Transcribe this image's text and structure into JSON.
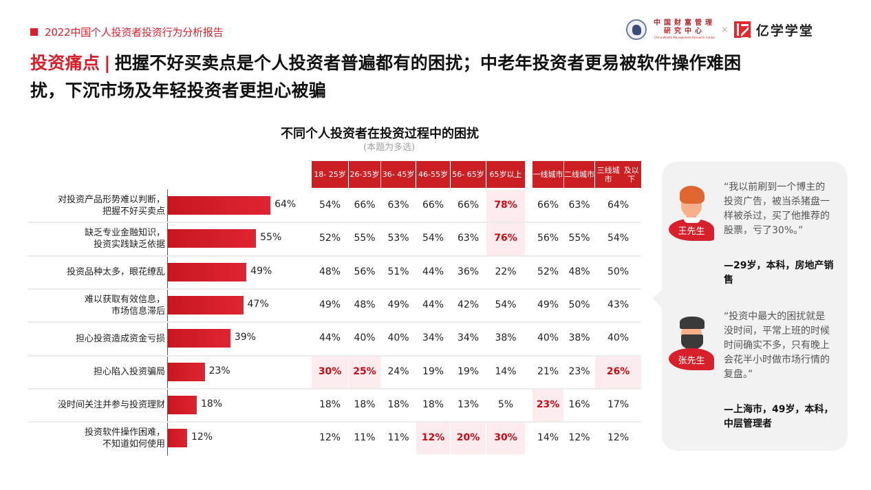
{
  "header": {
    "report_tag": "2022中国个人投资者投资行为分析报告",
    "logos": {
      "partner_1_line1": "中国财富管理",
      "partner_1_line2": "研究中心",
      "partner_1_en": "China Wealth Management Research Center",
      "times": "×",
      "partner_2": "亿学学堂"
    }
  },
  "headline": {
    "highlight": "投资痛点",
    "separator": "|",
    "line1": "把握不好买卖点是个人投资者普遍都有的困扰；中老年投资者更易被软件操作难困",
    "line2": "扰，下沉市场及年轻投资者更担心被骗"
  },
  "chart_data": {
    "type": "bar",
    "title": "不同个人投资者在投资过程中的困扰",
    "subtitle": "(本题为多选)",
    "orientation": "horizontal",
    "categories": [
      "对投资产品形势难以判断，把握不好买卖点",
      "缺乏专业金融知识，投资实践缺乏依据",
      "投资品种太多，眼花缭乱",
      "难以获取有效信息，市场信息滞后",
      "担心投资造成资金亏损",
      "担心陷入投资骗局",
      "没时间关注并参与投资理财",
      "投资软件操作困难，不知道如何使用"
    ],
    "category_lines": [
      [
        "对投资产品形势难以判断，",
        "把握不好买卖点"
      ],
      [
        "缺乏专业金融知识，",
        "投资实践缺乏依据"
      ],
      [
        "投资品种太多，眼花缭乱"
      ],
      [
        "难以获取有效信息，",
        "市场信息滞后"
      ],
      [
        "担心投资造成资金亏损"
      ],
      [
        "担心陷入投资骗局"
      ],
      [
        "没时间关注并参与投资理财"
      ],
      [
        "投资软件操作困难，",
        "不知道如何使用"
      ]
    ],
    "values": [
      64,
      55,
      49,
      47,
      39,
      23,
      18,
      12
    ],
    "value_labels": [
      "64%",
      "55%",
      "49%",
      "47%",
      "39%",
      "23%",
      "18%",
      "12%"
    ],
    "xlim": [
      0,
      100
    ],
    "grid": false,
    "table": {
      "columns": [
        "18- 25岁",
        "26-35岁",
        "36- 45岁",
        "46-55岁",
        "56- 65岁",
        "65岁以上",
        "一线城市",
        "二线城市",
        "三线城市及以下"
      ],
      "column_lines": [
        [
          "18- 25岁"
        ],
        [
          "26-35岁"
        ],
        [
          "36- 45岁"
        ],
        [
          "46-55岁"
        ],
        [
          "56- 65岁"
        ],
        [
          "65岁",
          "以上"
        ],
        [
          "一线",
          "城市"
        ],
        [
          "二线城",
          "市"
        ],
        [
          "三线城市",
          "及以下"
        ]
      ],
      "rows": [
        [
          "54%",
          "66%",
          "63%",
          "66%",
          "66%",
          "78%",
          "66%",
          "63%",
          "64%"
        ],
        [
          "52%",
          "55%",
          "53%",
          "54%",
          "63%",
          "76%",
          "56%",
          "55%",
          "54%"
        ],
        [
          "48%",
          "56%",
          "51%",
          "44%",
          "36%",
          "22%",
          "52%",
          "48%",
          "50%"
        ],
        [
          "49%",
          "48%",
          "49%",
          "44%",
          "42%",
          "54%",
          "49%",
          "50%",
          "43%"
        ],
        [
          "44%",
          "40%",
          "40%",
          "34%",
          "34%",
          "38%",
          "40%",
          "38%",
          "40%"
        ],
        [
          "30%",
          "25%",
          "24%",
          "19%",
          "19%",
          "14%",
          "21%",
          "23%",
          "26%"
        ],
        [
          "18%",
          "18%",
          "18%",
          "18%",
          "13%",
          "5%",
          "23%",
          "16%",
          "17%"
        ],
        [
          "12%",
          "11%",
          "11%",
          "12%",
          "20%",
          "30%",
          "14%",
          "12%",
          "12%"
        ]
      ],
      "highlighted": [
        [
          0,
          5
        ],
        [
          1,
          5
        ],
        [
          5,
          0
        ],
        [
          5,
          1
        ],
        [
          5,
          8
        ],
        [
          6,
          6
        ],
        [
          7,
          3
        ],
        [
          7,
          4
        ],
        [
          7,
          5
        ]
      ]
    }
  },
  "quotes": [
    {
      "name": "王先生",
      "text": "“我以前刷到一个博主的投资广告，被当杀猪盘一样被杀过，买了他推荐的股票，亏了30%。”",
      "attribution": "—29岁，本科，房地产销售"
    },
    {
      "name": "张先生",
      "text": "“投资中最大的困扰就是没时间，平常上班的时候时间确实不多，只有晚上会花半小时做市场行情的复盘。”",
      "attribution": "—上海市，49岁，本科，中层管理者"
    }
  ],
  "colors": {
    "accent": "#d7202c",
    "header_bg": "#cc1f24",
    "highlight_bg": "#fdecee",
    "highlight_text": "#cc0a14",
    "quote_panel_bg": "#f2f2f2"
  }
}
